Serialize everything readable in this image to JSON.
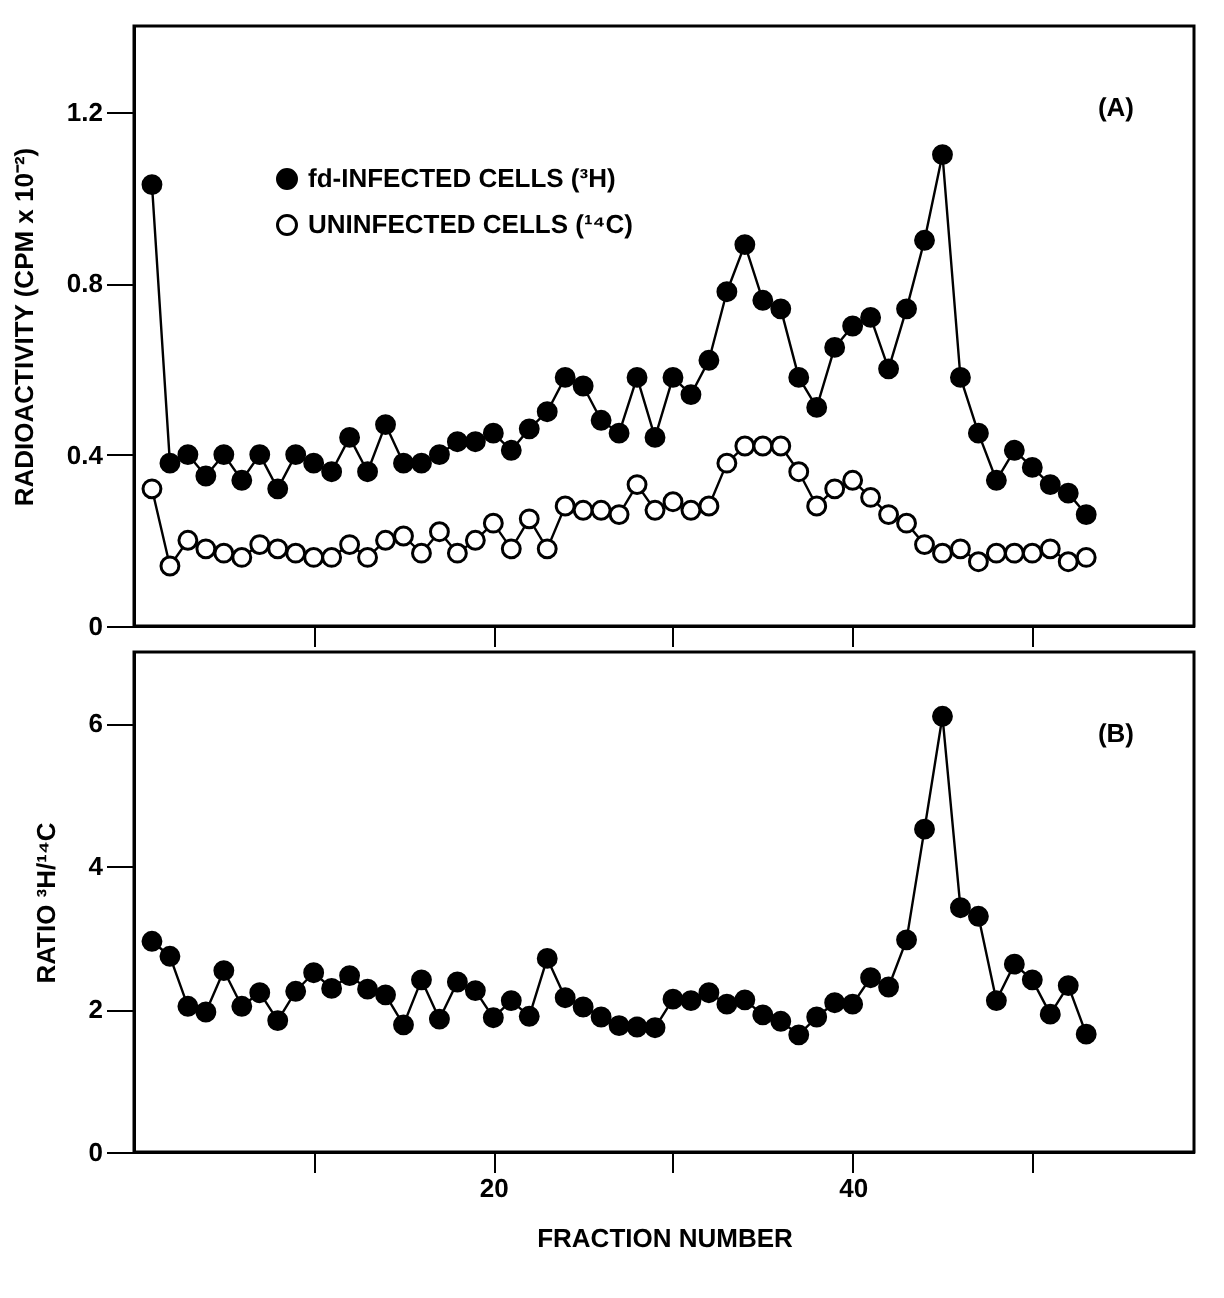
{
  "chart_data": [
    {
      "type": "line",
      "ylabel": "RADIOACTIVITY (CPM x 10⁻²)",
      "annotations": [
        "(A)"
      ],
      "x": [
        1,
        2,
        3,
        4,
        5,
        6,
        7,
        8,
        9,
        10,
        11,
        12,
        13,
        14,
        15,
        16,
        17,
        18,
        19,
        20,
        21,
        22,
        23,
        24,
        25,
        26,
        27,
        28,
        29,
        30,
        31,
        32,
        33,
        34,
        35,
        36,
        37,
        38,
        39,
        40,
        41,
        42,
        43,
        44,
        45,
        46,
        47,
        48,
        49,
        50,
        51,
        52,
        53
      ],
      "series": [
        {
          "name": "fd-INFECTED CELLS (³H)",
          "color": "#000000",
          "values": [
            1.03,
            0.38,
            0.4,
            0.35,
            0.4,
            0.34,
            0.4,
            0.32,
            0.4,
            0.38,
            0.36,
            0.44,
            0.36,
            0.47,
            0.38,
            0.38,
            0.4,
            0.43,
            0.43,
            0.45,
            0.41,
            0.46,
            0.5,
            0.58,
            0.56,
            0.48,
            0.45,
            0.58,
            0.44,
            0.58,
            0.54,
            0.62,
            0.78,
            0.89,
            0.76,
            0.74,
            0.58,
            0.51,
            0.65,
            0.7,
            0.72,
            0.6,
            0.74,
            0.9,
            1.1,
            0.58,
            0.45,
            0.34,
            0.41,
            0.37,
            0.33,
            0.31,
            0.26
          ]
        },
        {
          "name": "UNINFECTED CELLS (¹⁴C)",
          "color": "#ffffff",
          "values": [
            0.32,
            0.14,
            0.2,
            0.18,
            0.17,
            0.16,
            0.19,
            0.18,
            0.17,
            0.16,
            0.16,
            0.19,
            0.16,
            0.2,
            0.21,
            0.17,
            0.22,
            0.17,
            0.2,
            0.24,
            0.18,
            0.25,
            0.18,
            0.28,
            0.27,
            0.27,
            0.26,
            0.33,
            0.27,
            0.29,
            0.27,
            0.28,
            0.38,
            0.42,
            0.42,
            0.42,
            0.36,
            0.28,
            0.32,
            0.34,
            0.3,
            0.26,
            0.24,
            0.19,
            0.17,
            0.18,
            0.15,
            0.17,
            0.17,
            0.17,
            0.18,
            0.15,
            0.16
          ]
        }
      ],
      "xlim": [
        0,
        59
      ],
      "xticks": [
        {
          "value": 10,
          "label": null
        },
        {
          "value": 20,
          "label": null
        },
        {
          "value": 30,
          "label": null
        },
        {
          "value": 40,
          "label": null
        },
        {
          "value": 50,
          "label": null
        }
      ],
      "ylim": [
        0,
        1.4
      ],
      "yticks": [
        0,
        0.4,
        0.8,
        1.2
      ],
      "tick_labels": "y",
      "legend": "top left",
      "marker": "circle",
      "line_style": "solid"
    },
    {
      "type": "line",
      "xlabel": "FRACTION NUMBER",
      "ylabel": "RATIO ³H/¹⁴C",
      "annotations": [
        "(B)"
      ],
      "x": [
        1,
        2,
        3,
        4,
        5,
        6,
        7,
        8,
        9,
        10,
        11,
        12,
        13,
        14,
        15,
        16,
        17,
        18,
        19,
        20,
        21,
        22,
        23,
        24,
        25,
        26,
        27,
        28,
        29,
        30,
        31,
        32,
        33,
        34,
        35,
        36,
        37,
        38,
        39,
        40,
        41,
        42,
        43,
        44,
        45,
        46,
        47,
        48,
        49,
        50,
        51,
        52,
        53
      ],
      "series": [
        {
          "color": "#000000",
          "values": [
            2.95,
            2.74,
            2.04,
            1.96,
            2.54,
            2.04,
            2.23,
            1.84,
            2.25,
            2.51,
            2.29,
            2.47,
            2.28,
            2.2,
            1.78,
            2.41,
            1.86,
            2.38,
            2.26,
            1.88,
            2.12,
            1.9,
            2.71,
            2.16,
            2.03,
            1.89,
            1.77,
            1.75,
            1.74,
            2.14,
            2.12,
            2.23,
            2.07,
            2.13,
            1.92,
            1.83,
            1.64,
            1.89,
            2.09,
            2.07,
            2.44,
            2.31,
            2.97,
            4.52,
            6.1,
            3.42,
            3.3,
            2.12,
            2.63,
            2.41,
            1.93,
            2.33,
            1.65
          ]
        }
      ],
      "xlim": [
        0,
        59
      ],
      "xticks": [
        {
          "value": 10,
          "label": null
        },
        20,
        {
          "value": 30,
          "label": null
        },
        40,
        {
          "value": 50,
          "label": null
        }
      ],
      "ylim": [
        0,
        7
      ],
      "yticks": [
        0,
        2,
        4,
        6
      ],
      "marker": "circle",
      "line_style": "solid"
    }
  ]
}
